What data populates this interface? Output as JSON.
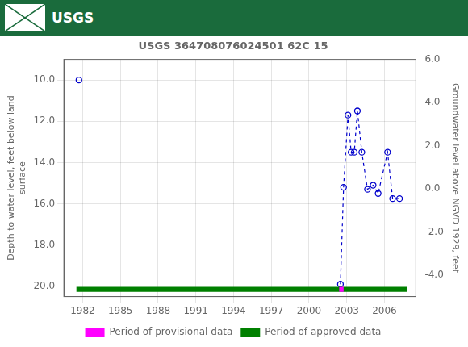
{
  "chart_data": {
    "type": "line",
    "title": "USGS 364708076024501 62C 15",
    "annotations": [
      "USGS"
    ],
    "ylabel": "Depth to water level, feet below land\nsurface",
    "y2label": "Groundwater level above NGVD 1929, feet",
    "xlim": [
      1980.5,
      2008.5
    ],
    "xticks": [
      1982,
      1985,
      1988,
      1991,
      1994,
      1997,
      2000,
      2003,
      2006
    ],
    "ylim": [
      20.5,
      9.0
    ],
    "yticks": [
      {
        "value": 10.0,
        "label": "10.0"
      },
      {
        "value": 12.0,
        "label": "12.0"
      },
      {
        "value": 14.0,
        "label": "14.0"
      },
      {
        "value": 16.0,
        "label": "16.0"
      },
      {
        "value": 18.0,
        "label": "18.0"
      },
      {
        "value": 20.0,
        "label": "20.0"
      }
    ],
    "y2lim": [
      -5.0,
      6.0
    ],
    "y2ticks": [
      {
        "value": 6.0,
        "label": "6.0"
      },
      {
        "value": 4.0,
        "label": "4.0"
      },
      {
        "value": 2.0,
        "label": "2.0"
      },
      {
        "value": 0.0,
        "label": "0.0"
      },
      {
        "value": -2.0,
        "label": "-2.0"
      },
      {
        "value": -4.0,
        "label": "-4.0"
      }
    ],
    "grid": true,
    "legend": "bottom",
    "series": [
      {
        "type": "scatter",
        "marker": "open_circle",
        "color": "#0000cc",
        "x": [
          1981.7
        ],
        "values": [
          10.0
        ]
      },
      {
        "type": "line",
        "line_style": "dashed",
        "marker": "open_circle",
        "color": "#0000cc",
        "x": [
          2002.5,
          2002.75,
          2003.1,
          2003.35,
          2003.6,
          2003.85,
          2004.2,
          2004.65,
          2005.1,
          2005.5,
          2006.25,
          2006.65,
          2007.2
        ],
        "values": [
          19.9,
          15.2,
          11.7,
          13.5,
          13.5,
          11.5,
          13.5,
          15.3,
          15.1,
          15.5,
          13.5,
          15.75,
          15.75
        ]
      },
      {
        "name": "Period of approved data",
        "type": "band",
        "color": "#008000",
        "x": [
          1981.5,
          2007.8
        ],
        "values": [
          20.15,
          20.15
        ],
        "half_height": 0.12
      },
      {
        "name": "Period of provisional data",
        "type": "band",
        "color": "#ff00ff",
        "x": [
          2002.4,
          2002.75
        ],
        "values": [
          20.15,
          20.15
        ],
        "half_height": 0.12
      }
    ]
  }
}
